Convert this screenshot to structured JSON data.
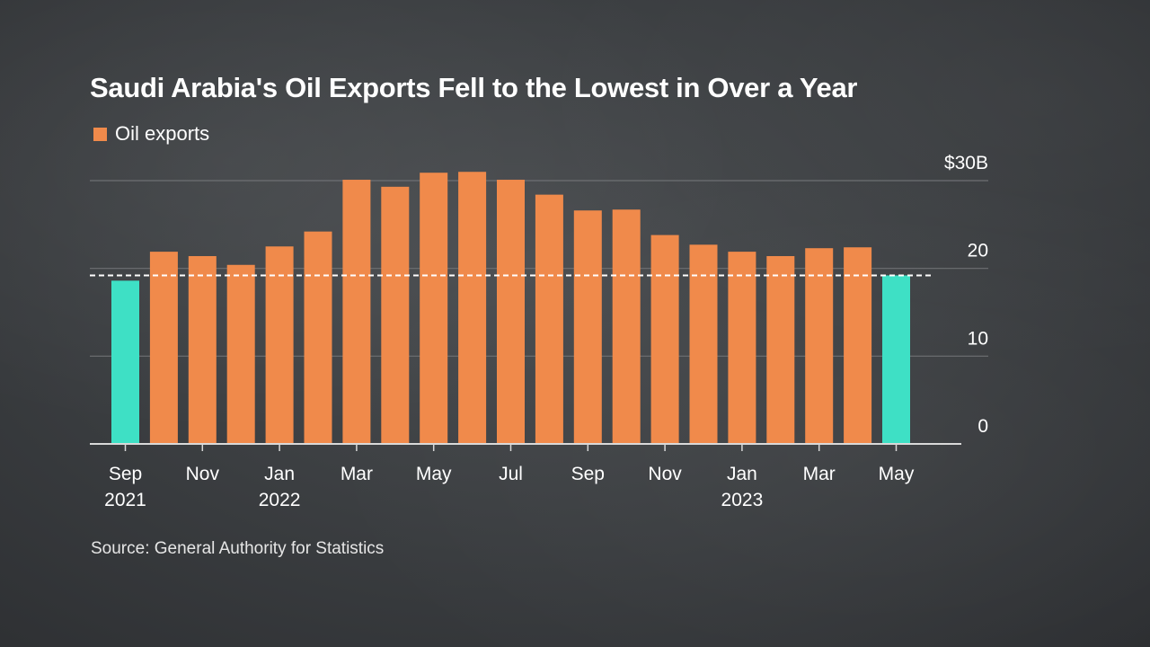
{
  "title": "Saudi Arabia's Oil Exports Fell to the Lowest in Over a Year",
  "source": "Source: General Authority for Statistics",
  "colors": {
    "bar": "#f08a4b",
    "highlight": "#3ee0c5",
    "grid": "#6e7073",
    "axis": "#d9d9d9",
    "reference": "#ffffff"
  },
  "chart_data": {
    "type": "bar",
    "title": "Saudi Arabia's Oil Exports Fell to the Lowest in Over a Year",
    "legend": [
      {
        "name": "Oil exports",
        "color": "#f08a4b"
      }
    ],
    "categories": [
      "Sep 2021",
      "Oct 2021",
      "Nov 2021",
      "Dec 2021",
      "Jan 2022",
      "Feb 2022",
      "Mar 2022",
      "Apr 2022",
      "May 2022",
      "Jun 2022",
      "Jul 2022",
      "Aug 2022",
      "Sep 2022",
      "Oct 2022",
      "Nov 2022",
      "Dec 2022",
      "Jan 2023",
      "Feb 2023",
      "Mar 2023",
      "Apr 2023",
      "May 2023"
    ],
    "values": [
      18.6,
      21.9,
      21.4,
      20.4,
      22.5,
      24.2,
      30.1,
      29.3,
      30.9,
      31.0,
      30.1,
      28.4,
      26.6,
      26.7,
      23.8,
      22.7,
      21.9,
      21.4,
      22.3,
      22.4,
      19.2
    ],
    "highlighted": [
      "Sep 2021",
      "May 2023"
    ],
    "reference_line": 19.2,
    "x_tick_labels": [
      {
        "index": 0,
        "month": "Sep",
        "year": "2021"
      },
      {
        "index": 2,
        "month": "Nov",
        "year": ""
      },
      {
        "index": 4,
        "month": "Jan",
        "year": "2022"
      },
      {
        "index": 6,
        "month": "Mar",
        "year": ""
      },
      {
        "index": 8,
        "month": "May",
        "year": ""
      },
      {
        "index": 10,
        "month": "Jul",
        "year": ""
      },
      {
        "index": 12,
        "month": "Sep",
        "year": ""
      },
      {
        "index": 14,
        "month": "Nov",
        "year": ""
      },
      {
        "index": 16,
        "month": "Jan",
        "year": "2023"
      },
      {
        "index": 18,
        "month": "Mar",
        "year": ""
      },
      {
        "index": 20,
        "month": "May",
        "year": ""
      }
    ],
    "y_ticks": [
      {
        "value": 0,
        "label": "0"
      },
      {
        "value": 10,
        "label": "10"
      },
      {
        "value": 20,
        "label": "20"
      },
      {
        "value": 30,
        "label": "$30B"
      }
    ],
    "ylim": [
      0,
      30
    ],
    "xlabel": "",
    "ylabel": ""
  }
}
